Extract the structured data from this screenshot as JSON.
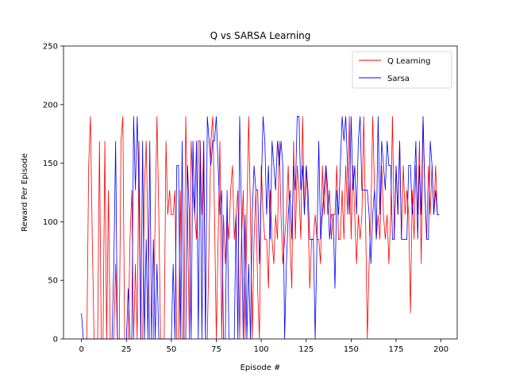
{
  "chart_data": {
    "type": "line",
    "title": "Q vs SARSA Learning",
    "xlabel": "Episode #",
    "ylabel": "Reward Per Episode",
    "xlim": [
      -10,
      209
    ],
    "ylim": [
      0,
      250
    ],
    "xticks": [
      0,
      25,
      50,
      75,
      100,
      125,
      150,
      175,
      200
    ],
    "yticks": [
      0,
      50,
      100,
      150,
      200,
      250
    ],
    "grid": false,
    "legend_position": "top-right",
    "series": [
      {
        "name": "Q Learning",
        "color": "#ff0000",
        "x": [
          0,
          1,
          2,
          3,
          4,
          5,
          6,
          7,
          8,
          9,
          10,
          11,
          12,
          13,
          14,
          15,
          16,
          17,
          18,
          19,
          20,
          21,
          22,
          23,
          24,
          25,
          26,
          27,
          28,
          29,
          30,
          31,
          32,
          33,
          34,
          35,
          36,
          37,
          38,
          39,
          40,
          41,
          42,
          43,
          44,
          45,
          46,
          47,
          48,
          49,
          50,
          51,
          52,
          53,
          54,
          55,
          56,
          57,
          58,
          59,
          60,
          61,
          62,
          63,
          64,
          65,
          66,
          67,
          68,
          69,
          70,
          71,
          72,
          73,
          74,
          75,
          76,
          77,
          78,
          79,
          80,
          81,
          82,
          83,
          84,
          85,
          86,
          87,
          88,
          89,
          90,
          91,
          92,
          93,
          94,
          95,
          96,
          97,
          98,
          99,
          100,
          101,
          102,
          103,
          104,
          105,
          106,
          107,
          108,
          109,
          110,
          111,
          112,
          113,
          114,
          115,
          116,
          117,
          118,
          119,
          120,
          121,
          122,
          123,
          124,
          125,
          126,
          127,
          128,
          129,
          130,
          131,
          132,
          133,
          134,
          135,
          136,
          137,
          138,
          139,
          140,
          141,
          142,
          143,
          144,
          145,
          146,
          147,
          148,
          149,
          150,
          151,
          152,
          153,
          154,
          155,
          156,
          157,
          158,
          159,
          160,
          161,
          162,
          163,
          164,
          165,
          166,
          167,
          168,
          169,
          170,
          171,
          172,
          173,
          174,
          175,
          176,
          177,
          178,
          179,
          180,
          181,
          182,
          183,
          184,
          185,
          186,
          187,
          188,
          189,
          190,
          191,
          192,
          193,
          194,
          195,
          196,
          197,
          198,
          199
        ],
        "y": [
          0,
          0,
          0,
          0,
          148,
          190,
          85,
          0,
          0,
          0,
          169,
          0,
          0,
          169,
          0,
          127,
          0,
          0,
          0,
          64,
          0,
          0,
          169,
          190,
          0,
          0,
          0,
          85,
          127,
          0,
          64,
          0,
          169,
          0,
          0,
          127,
          169,
          85,
          0,
          0,
          0,
          106,
          190,
          106,
          0,
          0,
          0,
          169,
          106,
          127,
          106,
          106,
          127,
          0,
          0,
          127,
          0,
          0,
          190,
          106,
          0,
          169,
          127,
          106,
          85,
          169,
          169,
          106,
          169,
          0,
          0,
          85,
          169,
          190,
          106,
          0,
          85,
          169,
          0,
          106,
          64,
          106,
          85,
          127,
          148,
          85,
          106,
          127,
          0,
          85,
          127,
          0,
          106,
          190,
          106,
          0,
          85,
          127,
          43,
          0,
          148,
          106,
          85,
          85,
          43,
          127,
          85,
          64,
          106,
          85,
          169,
          106,
          64,
          85,
          106,
          148,
          85,
          43,
          169,
          85,
          148,
          127,
          85,
          190,
          106,
          148,
          106,
          43,
          85,
          85,
          106,
          85,
          85,
          64,
          148,
          106,
          148,
          106,
          127,
          85,
          106,
          106,
          148,
          85,
          85,
          127,
          85,
          148,
          106,
          190,
          85,
          148,
          106,
          64,
          106,
          85,
          106,
          190,
          106,
          0,
          64,
          106,
          190,
          127,
          85,
          106,
          85,
          148,
          106,
          85,
          106,
          64,
          106,
          190,
          85,
          148,
          106,
          169,
          85,
          148,
          106,
          127,
          106,
          22,
          127,
          85,
          148,
          106,
          169,
          64,
          190,
          127,
          85,
          148,
          106,
          148,
          106,
          148,
          106,
          106
        ]
      },
      {
        "name": "Sarsa",
        "color": "#0000ff",
        "x": [
          0,
          1,
          2,
          3,
          4,
          5,
          6,
          7,
          8,
          9,
          10,
          11,
          12,
          13,
          14,
          15,
          16,
          17,
          18,
          19,
          20,
          21,
          22,
          23,
          24,
          25,
          26,
          27,
          28,
          29,
          30,
          31,
          32,
          33,
          34,
          35,
          36,
          37,
          38,
          39,
          40,
          41,
          42,
          43,
          44,
          45,
          46,
          47,
          48,
          49,
          50,
          51,
          52,
          53,
          54,
          55,
          56,
          57,
          58,
          59,
          60,
          61,
          62,
          63,
          64,
          65,
          66,
          67,
          68,
          69,
          70,
          71,
          72,
          73,
          74,
          75,
          76,
          77,
          78,
          79,
          80,
          81,
          82,
          83,
          84,
          85,
          86,
          87,
          88,
          89,
          90,
          91,
          92,
          93,
          94,
          95,
          96,
          97,
          98,
          99,
          100,
          101,
          102,
          103,
          104,
          105,
          106,
          107,
          108,
          109,
          110,
          111,
          112,
          113,
          114,
          115,
          116,
          117,
          118,
          119,
          120,
          121,
          122,
          123,
          124,
          125,
          126,
          127,
          128,
          129,
          130,
          131,
          132,
          133,
          134,
          135,
          136,
          137,
          138,
          139,
          140,
          141,
          142,
          143,
          144,
          145,
          146,
          147,
          148,
          149,
          150,
          151,
          152,
          153,
          154,
          155,
          156,
          157,
          158,
          159,
          160,
          161,
          162,
          163,
          164,
          165,
          166,
          167,
          168,
          169,
          170,
          171,
          172,
          173,
          174,
          175,
          176,
          177,
          178,
          179,
          180,
          181,
          182,
          183,
          184,
          185,
          186,
          187,
          188,
          189,
          190,
          191,
          192,
          193,
          194,
          195,
          196,
          197,
          198,
          199
        ],
        "y": [
          22,
          0,
          0,
          0,
          0,
          0,
          0,
          0,
          0,
          0,
          0,
          0,
          0,
          0,
          0,
          0,
          0,
          0,
          64,
          169,
          0,
          0,
          0,
          0,
          0,
          0,
          43,
          0,
          0,
          190,
          127,
          190,
          127,
          0,
          169,
          0,
          85,
          0,
          169,
          0,
          85,
          0,
          64,
          0,
          0,
          0,
          0,
          0,
          0,
          0,
          0,
          64,
          0,
          148,
          148,
          0,
          169,
          0,
          0,
          148,
          106,
          0,
          169,
          106,
          169,
          0,
          169,
          0,
          169,
          0,
          190,
          169,
          148,
          169,
          169,
          190,
          148,
          106,
          127,
          0,
          0,
          127,
          0,
          0,
          0,
          0,
          106,
          0,
          190,
          106,
          0,
          106,
          0,
          64,
          0,
          106,
          148,
          127,
          127,
          64,
          127,
          190,
          169,
          106,
          148,
          85,
          169,
          148,
          127,
          169,
          148,
          169,
          148,
          0,
          64,
          106,
          127,
          85,
          148,
          127,
          190,
          190,
          127,
          148,
          106,
          148,
          127,
          85,
          85,
          85,
          0,
          85,
          169,
          85,
          106,
          127,
          148,
          127,
          85,
          106,
          106,
          43,
          127,
          106,
          148,
          190,
          169,
          190,
          148,
          106,
          190,
          127,
          148,
          106,
          169,
          190,
          127,
          127,
          127,
          127,
          106,
          64,
          106,
          127,
          85,
          190,
          106,
          169,
          148,
          127,
          169,
          148,
          148,
          85,
          85,
          148,
          106,
          169,
          85,
          85,
          85,
          85,
          148,
          148,
          106,
          127,
          169,
          85,
          148,
          106,
          190,
          127,
          85,
          85,
          169,
          148,
          106,
          127,
          106,
          106
        ]
      }
    ]
  }
}
